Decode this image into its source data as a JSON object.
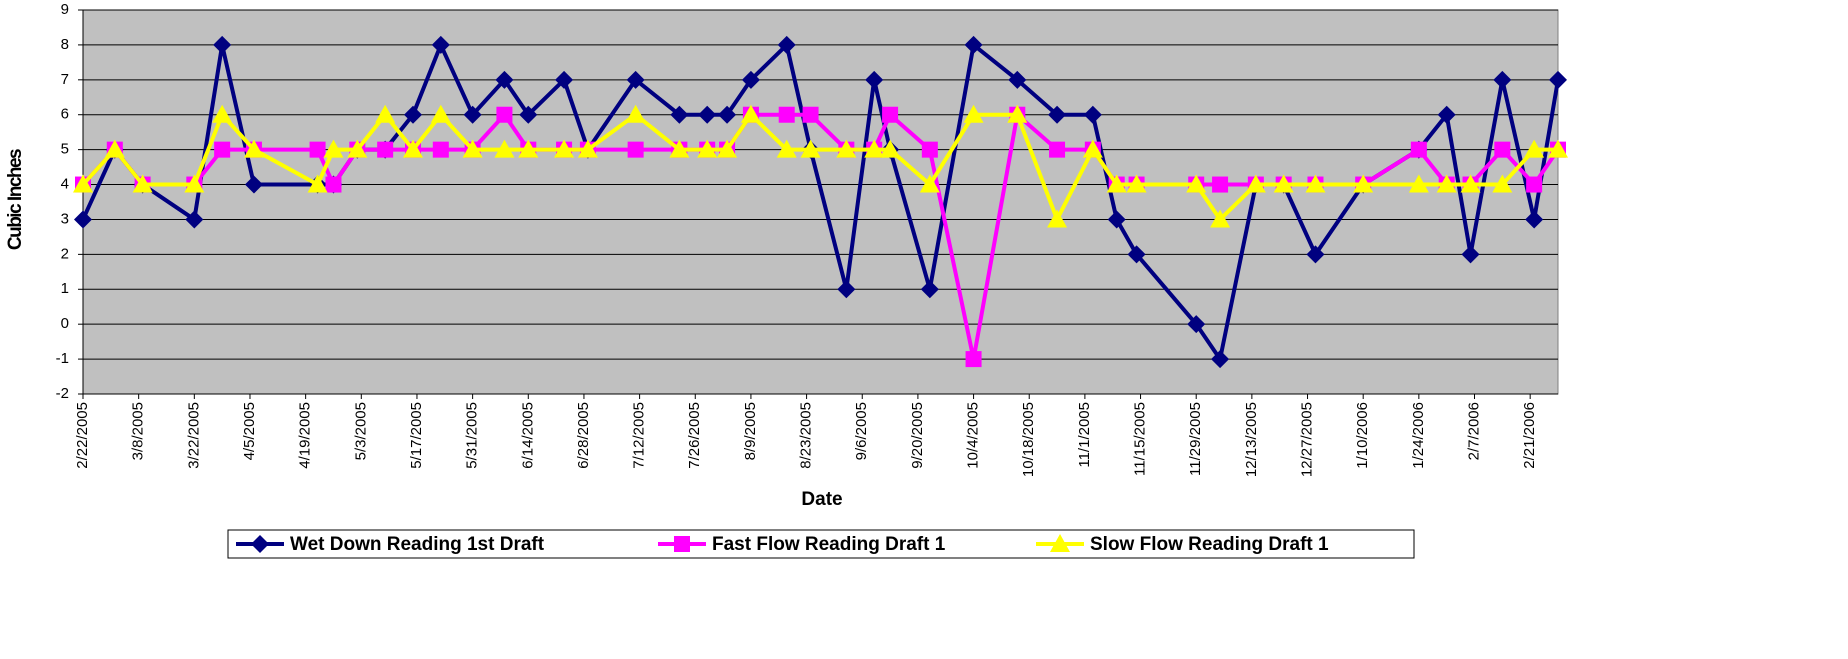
{
  "chart_data": {
    "type": "line",
    "x_label": "Date",
    "y_label": "Cubic Inches",
    "x": [
      "2/22/2005",
      "3/2/2005",
      "3/9/2005",
      "3/22/2005",
      "3/29/2005",
      "4/6/2005",
      "4/22/2005",
      "4/26/2005",
      "5/2/2005",
      "5/9/2005",
      "5/16/2005",
      "5/23/2005",
      "5/31/2005",
      "6/8/2005",
      "6/14/2005",
      "6/23/2005",
      "6/29/2005",
      "7/11/2005",
      "7/22/2005",
      "7/29/2005",
      "8/3/2005",
      "8/9/2005",
      "8/18/2005",
      "8/24/2005",
      "9/2/2005",
      "9/9/2005",
      "9/13/2005",
      "9/23/2005",
      "10/4/2005",
      "10/15/2005",
      "10/25/2005",
      "11/3/2005",
      "11/9/2005",
      "11/14/2005",
      "11/29/2005",
      "12/5/2005",
      "12/14/2005",
      "12/21/2005",
      "12/29/2005",
      "1/10/2006",
      "1/24/2006",
      "1/31/2006",
      "2/6/2006",
      "2/14/2006",
      "2/22/2006",
      "2/28/2006"
    ],
    "series": [
      {
        "name": "Wet Down Reading 1st Draft",
        "color": "#000080",
        "marker": "diamond",
        "values": [
          3,
          5,
          4,
          3,
          8,
          4,
          4,
          4,
          5,
          5,
          6,
          8,
          6,
          7,
          6,
          7,
          5,
          7,
          6,
          6,
          6,
          7,
          8,
          5,
          1,
          7,
          5,
          1,
          8,
          7,
          6,
          6,
          3,
          2,
          0,
          -1,
          4,
          4,
          2,
          4,
          5,
          6,
          2,
          7,
          3,
          7
        ]
      },
      {
        "name": "Fast Flow Reading Draft 1",
        "color": "#ff00ff",
        "marker": "square",
        "values": [
          4,
          5,
          4,
          4,
          5,
          5,
          5,
          4,
          5,
          5,
          5,
          5,
          5,
          6,
          5,
          5,
          5,
          5,
          5,
          5,
          5,
          6,
          6,
          6,
          5,
          5,
          6,
          5,
          -1,
          6,
          5,
          5,
          4,
          4,
          4,
          4,
          4,
          4,
          4,
          4,
          5,
          4,
          4,
          5,
          4,
          5
        ]
      },
      {
        "name": "Slow Flow Reading Draft 1",
        "color": "#ffff00",
        "marker": "triangle",
        "values": [
          4,
          5,
          4,
          4,
          6,
          5,
          4,
          5,
          5,
          6,
          5,
          6,
          5,
          5,
          5,
          5,
          5,
          6,
          5,
          5,
          5,
          6,
          5,
          5,
          5,
          5,
          5,
          4,
          6,
          6,
          3,
          5,
          4,
          4,
          4,
          3,
          4,
          4,
          4,
          4,
          4,
          4,
          4,
          4,
          5,
          5
        ]
      }
    ],
    "xlim": [
      "2/22/2005",
      "2/28/2006"
    ],
    "xticks": [
      "2/22/2005",
      "3/8/2005",
      "3/22/2005",
      "4/5/2005",
      "4/19/2005",
      "5/3/2005",
      "5/17/2005",
      "5/31/2005",
      "6/14/2005",
      "6/28/2005",
      "7/12/2005",
      "7/26/2005",
      "8/9/2005",
      "8/23/2005",
      "9/6/2005",
      "9/20/2005",
      "10/4/2005",
      "10/18/2005",
      "11/1/2005",
      "11/15/2005",
      "11/29/2005",
      "12/13/2005",
      "12/27/2005",
      "1/10/2006",
      "1/24/2006",
      "2/7/2006",
      "2/21/2006"
    ],
    "ylim": [
      -2,
      9
    ],
    "yticks": [
      -2,
      -1,
      0,
      1,
      2,
      3,
      4,
      5,
      6,
      7,
      8,
      9
    ],
    "grid": true,
    "legend": "bottom",
    "background": "#c0c0c0"
  }
}
